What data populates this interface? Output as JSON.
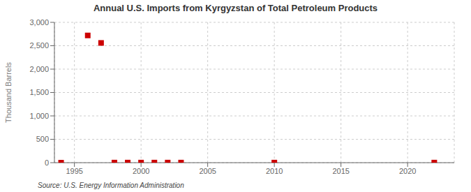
{
  "chart_data": {
    "type": "scatter",
    "title": "Annual U.S. Imports from Kyrgyzstan of Total Petroleum Products",
    "ylabel": "Thousand Barrels",
    "source": "Source: U.S. Energy Information Administration",
    "x": [
      1994,
      1996,
      1997,
      1998,
      1999,
      2000,
      2001,
      2002,
      2003,
      2010,
      2022
    ],
    "values": [
      0,
      2720,
      2560,
      2,
      2,
      2,
      2,
      2,
      2,
      2,
      2
    ],
    "color": "#cc0000",
    "marker": "square",
    "xlim": [
      1993.5,
      2023.5
    ],
    "ylim": [
      0,
      3000
    ],
    "xticks": [
      1995,
      2000,
      2005,
      2010,
      2015,
      2020
    ],
    "yticks": [
      0,
      500,
      {
        "value": 1000,
        "label": "1,000"
      },
      {
        "value": 1500,
        "label": "1,500"
      },
      {
        "value": 2000,
        "label": "2,000"
      },
      {
        "value": 2500,
        "label": "2,500"
      },
      {
        "value": 3000,
        "label": "3,000"
      }
    ],
    "grid": true
  }
}
